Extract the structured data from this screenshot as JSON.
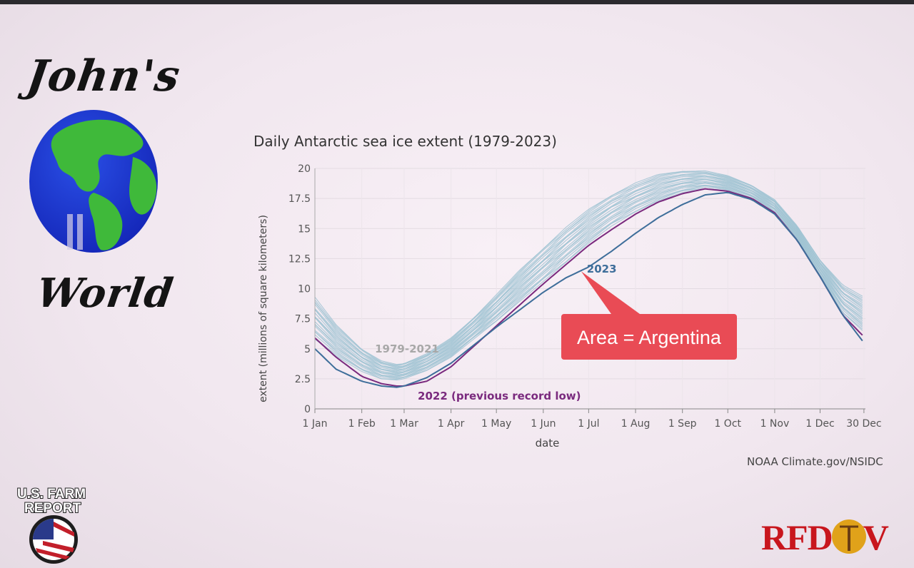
{
  "branding": {
    "johns": "John's",
    "world": "World",
    "bottom_left_line1": "U.S. FARM",
    "bottom_left_line2": "REPORT",
    "bottom_right": "RFD TV"
  },
  "chart_data": {
    "type": "line",
    "title": "Daily Antarctic sea ice extent (1979-2023)",
    "xlabel": "date",
    "ylabel": "extent (millions of square kilometers)",
    "x_ticks": [
      "1 Jan",
      "1 Feb",
      "1 Mar",
      "1 Apr",
      "1 May",
      "1 Jun",
      "1 Jul",
      "1 Aug",
      "1 Sep",
      "1 Oct",
      "1 Nov",
      "1 Dec",
      "30 Dec"
    ],
    "x_tick_days": [
      1,
      32,
      60,
      91,
      121,
      152,
      182,
      213,
      244,
      274,
      305,
      335,
      364
    ],
    "y_ticks": [
      "0",
      "2.5",
      "5",
      "7.5",
      "10",
      "12.5",
      "15",
      "17.5",
      "20"
    ],
    "ylim": [
      0,
      20
    ],
    "xlim_days": [
      1,
      365
    ],
    "grid": true,
    "series": [
      {
        "name": "1979-2021",
        "color": "#9fc3d2",
        "note_style": "band of 43 light blue-grey lines",
        "x_days": [
          1,
          15,
          32,
          45,
          55,
          60,
          75,
          91,
          106,
          121,
          136,
          152,
          167,
          182,
          197,
          213,
          228,
          244,
          259,
          274,
          290,
          305,
          320,
          335,
          350,
          364
        ],
        "low": [
          5.8,
          4.4,
          3.1,
          2.5,
          2.4,
          2.5,
          3.2,
          4.3,
          5.8,
          7.3,
          8.9,
          10.6,
          12.2,
          13.8,
          15.2,
          16.4,
          17.3,
          18.0,
          18.3,
          18.1,
          17.4,
          16.2,
          14.0,
          11.0,
          8.0,
          6.4
        ],
        "high": [
          9.3,
          7.0,
          5.0,
          4.0,
          3.7,
          3.8,
          4.6,
          5.9,
          7.6,
          9.5,
          11.5,
          13.4,
          15.1,
          16.6,
          17.8,
          18.8,
          19.5,
          19.8,
          19.8,
          19.4,
          18.6,
          17.4,
          15.2,
          12.4,
          10.3,
          9.3
        ]
      },
      {
        "name": "2022 (previous record low)",
        "color": "#7a2a7e",
        "x_days": [
          1,
          15,
          32,
          45,
          55,
          60,
          75,
          91,
          106,
          121,
          136,
          152,
          167,
          182,
          197,
          213,
          228,
          244,
          259,
          274,
          290,
          305,
          320,
          335,
          350,
          364
        ],
        "values": [
          5.9,
          4.3,
          2.7,
          2.1,
          1.9,
          1.9,
          2.3,
          3.5,
          5.2,
          6.9,
          8.6,
          10.4,
          12.0,
          13.6,
          14.9,
          16.2,
          17.2,
          17.9,
          18.3,
          18.1,
          17.5,
          16.3,
          14.0,
          11.0,
          7.8,
          6.0
        ]
      },
      {
        "name": "2023",
        "color": "#3e6e9a",
        "x_days": [
          1,
          15,
          32,
          45,
          55,
          60,
          75,
          91,
          106,
          121,
          136,
          152,
          167,
          182,
          197,
          213,
          228,
          244,
          259,
          274,
          290,
          305,
          320,
          335,
          350,
          364
        ],
        "values": [
          5.0,
          3.3,
          2.3,
          1.9,
          1.8,
          1.9,
          2.6,
          3.8,
          5.3,
          6.8,
          8.2,
          9.7,
          10.9,
          11.8,
          13.1,
          14.6,
          15.9,
          17.0,
          17.8,
          18.0,
          17.4,
          16.2,
          14.0,
          11.0,
          7.8,
          5.5
        ],
        "end_day": 177
      }
    ],
    "annotations": [
      {
        "text": "Area = Argentina",
        "color": "#e94b55",
        "pointer_day": 177,
        "pointer_value": 11.8
      }
    ],
    "credit": "NOAA Climate.gov/NSIDC"
  }
}
